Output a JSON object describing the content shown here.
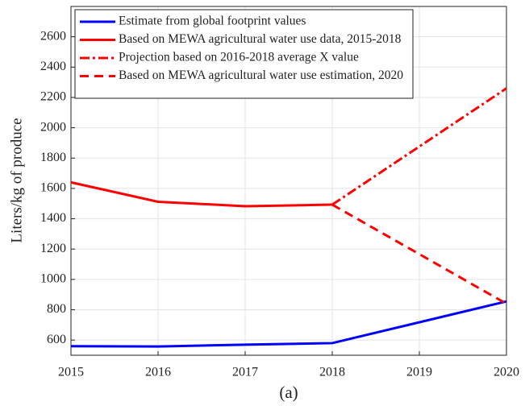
{
  "chart_data": {
    "type": "line",
    "ylabel": "Liters/kg of produce",
    "xlabel": "(a)",
    "xlim": [
      2015,
      2020
    ],
    "xticks": [
      2015,
      2016,
      2017,
      2018,
      2019,
      2020
    ],
    "ylim": [
      500,
      2800
    ],
    "yticks": [
      600,
      800,
      1000,
      1200,
      1400,
      1600,
      1800,
      2000,
      2200,
      2400,
      2600
    ],
    "grid": true,
    "legend": "upper left",
    "series": [
      {
        "name": "Estimate from global footprint values",
        "color": "#0000ff",
        "style": "solid",
        "x": [
          2015,
          2016,
          2017,
          2018,
          2020
        ],
        "values": [
          560,
          558,
          570,
          580,
          855
        ]
      },
      {
        "name": "Based on MEWA agricultural water use data, 2015-2018",
        "color": "#ff0000",
        "style": "solid",
        "x": [
          2015,
          2016,
          2017,
          2018
        ],
        "values": [
          1640,
          1512,
          1483,
          1493
        ]
      },
      {
        "name": "Projection based on 2016-2018 average X value",
        "color": "#ff0000",
        "style": "dashdot",
        "x": [
          2018,
          2020
        ],
        "values": [
          1493,
          2260
        ]
      },
      {
        "name": "Based on MEWA agricultural water use estimation, 2020",
        "color": "#ff0000",
        "style": "dashed",
        "x": [
          2018,
          2020
        ],
        "values": [
          1493,
          840
        ]
      }
    ]
  }
}
